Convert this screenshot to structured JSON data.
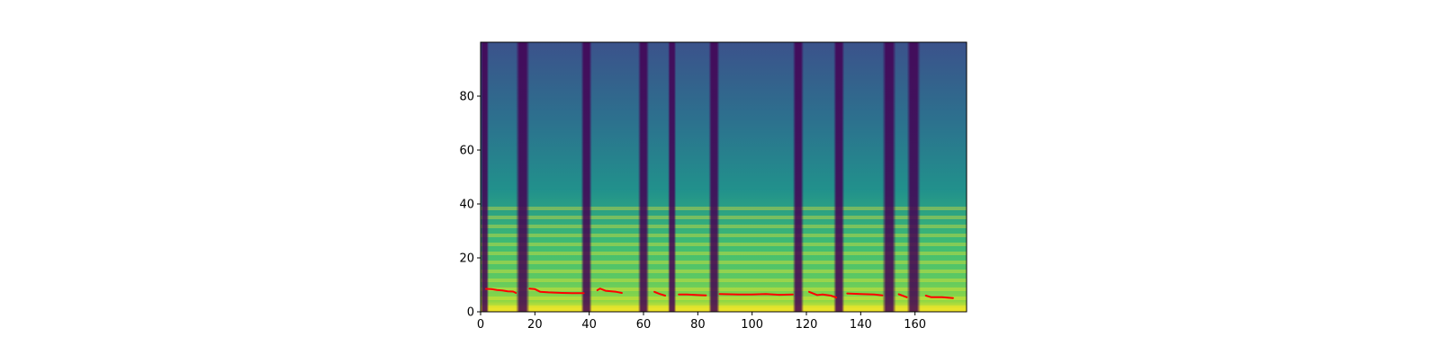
{
  "chart_data": {
    "type": "heatmap",
    "title": "",
    "xlabel": "",
    "ylabel": "",
    "xlim": [
      0,
      179
    ],
    "ylim": [
      0,
      100
    ],
    "x_ticks": [
      0,
      20,
      40,
      60,
      80,
      100,
      120,
      140,
      160
    ],
    "y_ticks": [
      0,
      20,
      40,
      60,
      80
    ],
    "grid": false,
    "legend": "none",
    "colormap": [
      "#440154",
      "#3b528b",
      "#21918c",
      "#5ec962",
      "#fde725"
    ],
    "overlay_color": "#ff0000",
    "silence_columns": [
      [
        0,
        3
      ],
      [
        13,
        18
      ],
      [
        37,
        41
      ],
      [
        58,
        62
      ],
      [
        69,
        72
      ],
      [
        84,
        88
      ],
      [
        115,
        119
      ],
      [
        130,
        134
      ],
      [
        148,
        153
      ],
      [
        157,
        162
      ]
    ],
    "pitch_segments": [
      {
        "x": [
          2,
          4,
          6,
          8,
          10,
          12,
          13
        ],
        "y": [
          8.5,
          8.4,
          8.1,
          7.9,
          7.6,
          7.5,
          7.0
        ]
      },
      {
        "x": [
          18,
          20,
          22,
          25,
          30,
          35,
          38
        ],
        "y": [
          8.6,
          8.4,
          7.4,
          7.2,
          7.0,
          6.9,
          6.9
        ]
      },
      {
        "x": [
          43,
          44,
          46,
          50,
          52
        ],
        "y": [
          8.0,
          8.6,
          7.8,
          7.4,
          7.0
        ]
      },
      {
        "x": [
          64,
          66,
          68
        ],
        "y": [
          7.4,
          6.6,
          6.0
        ]
      },
      {
        "x": [
          73,
          76,
          80,
          83
        ],
        "y": [
          6.4,
          6.4,
          6.2,
          6.1
        ]
      },
      {
        "x": [
          88,
          95,
          100,
          105,
          110,
          115
        ],
        "y": [
          6.6,
          6.4,
          6.4,
          6.6,
          6.3,
          6.4
        ]
      },
      {
        "x": [
          121,
          124,
          126,
          129,
          131
        ],
        "y": [
          7.4,
          6.2,
          6.4,
          6.0,
          5.3
        ]
      },
      {
        "x": [
          135,
          140,
          145,
          148
        ],
        "y": [
          6.8,
          6.6,
          6.4,
          6.1
        ]
      },
      {
        "x": [
          154,
          157
        ],
        "y": [
          6.5,
          5.4
        ]
      },
      {
        "x": [
          164,
          166,
          170,
          174
        ],
        "y": [
          6.0,
          5.4,
          5.4,
          5.1
        ]
      }
    ]
  }
}
